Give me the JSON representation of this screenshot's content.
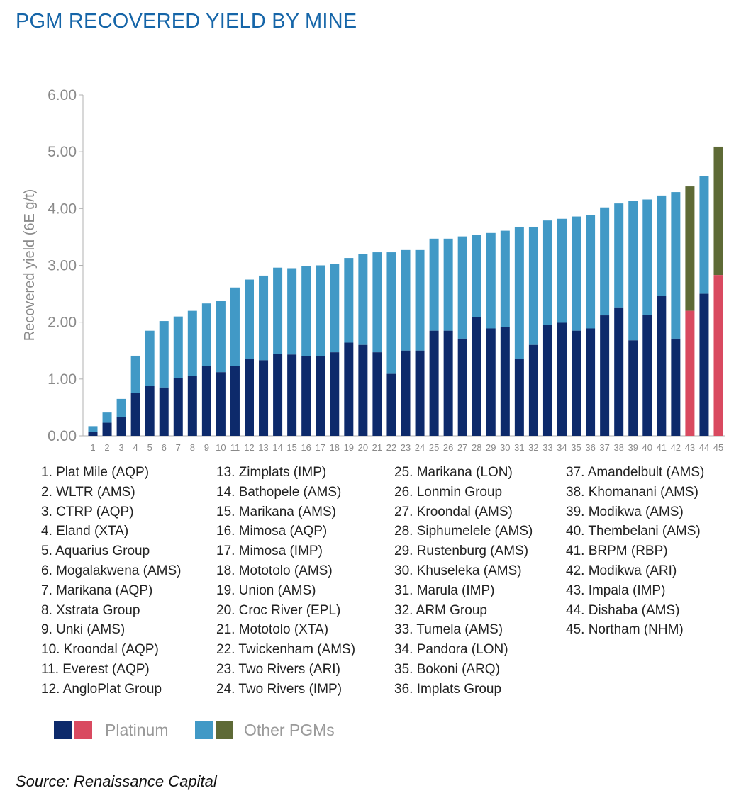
{
  "title": "PGM RECOVERED YIELD BY MINE",
  "source": "Source: Renaissance Capital",
  "legend": {
    "platinum_label": "Platinum",
    "other_label": "Other PGMs",
    "platinum_colors": [
      "#0d2a6b",
      "#d94a60"
    ],
    "other_colors": [
      "#4199c6",
      "#5e6a36"
    ]
  },
  "chart_data": {
    "type": "bar",
    "stacked": true,
    "ylabel": "Recovered yield (6E g/t)",
    "ylim": [
      0,
      6
    ],
    "yticks": [
      "0.00",
      "1.00",
      "2.00",
      "3.00",
      "4.00",
      "5.00",
      "6.00"
    ],
    "categories": [
      "1",
      "2",
      "3",
      "4",
      "5",
      "6",
      "7",
      "8",
      "9",
      "10",
      "11",
      "12",
      "13",
      "14",
      "15",
      "16",
      "17",
      "18",
      "19",
      "20",
      "21",
      "22",
      "23",
      "24",
      "25",
      "26",
      "27",
      "28",
      "29",
      "30",
      "31",
      "32",
      "33",
      "34",
      "35",
      "36",
      "37",
      "38",
      "39",
      "40",
      "41",
      "42",
      "43",
      "44",
      "45"
    ],
    "highlight_categories": [
      "43",
      "45"
    ],
    "series": [
      {
        "name": "Platinum",
        "values": [
          0.07,
          0.23,
          0.33,
          0.75,
          0.88,
          0.85,
          1.02,
          1.05,
          1.23,
          1.12,
          1.23,
          1.36,
          1.33,
          1.44,
          1.43,
          1.4,
          1.4,
          1.47,
          1.64,
          1.6,
          1.47,
          1.09,
          1.5,
          1.5,
          1.85,
          1.85,
          1.71,
          2.09,
          1.89,
          1.92,
          1.36,
          1.6,
          1.95,
          1.99,
          1.85,
          1.89,
          2.12,
          2.26,
          1.68,
          2.13,
          2.47,
          1.71,
          2.2,
          2.5,
          2.83
        ]
      },
      {
        "name": "Other PGMs",
        "values": [
          0.1,
          0.18,
          0.32,
          0.66,
          0.97,
          1.17,
          1.08,
          1.15,
          1.1,
          1.25,
          1.38,
          1.39,
          1.49,
          1.52,
          1.52,
          1.59,
          1.6,
          1.55,
          1.49,
          1.6,
          1.76,
          2.14,
          1.77,
          1.77,
          1.62,
          1.62,
          1.8,
          1.45,
          1.68,
          1.69,
          2.32,
          2.08,
          1.84,
          1.83,
          2.01,
          1.99,
          1.9,
          1.83,
          2.45,
          2.03,
          1.76,
          2.58,
          2.19,
          2.07,
          2.26
        ]
      }
    ]
  },
  "mines": [
    "1. Plat Mile (AQP)",
    "2. WLTR (AMS)",
    "3. CTRP (AQP)",
    "4. Eland (XTA)",
    "5. Aquarius Group",
    "6. Mogalakwena (AMS)",
    "7. Marikana (AQP)",
    "8. Xstrata Group",
    "9. Unki (AMS)",
    "10. Kroondal (AQP)",
    "11. Everest (AQP)",
    "12. AngloPlat Group",
    "13. Zimplats (IMP)",
    "14. Bathopele (AMS)",
    "15. Marikana (AMS)",
    "16. Mimosa (AQP)",
    "17. Mimosa (IMP)",
    "18. Mototolo (AMS)",
    "19. Union (AMS)",
    "20. Croc River (EPL)",
    "21. Mototolo (XTA)",
    "22. Twickenham (AMS)",
    "23. Two Rivers (ARI)",
    "24. Two Rivers (IMP)",
    "25. Marikana (LON)",
    "26. Lonmin Group",
    "27. Kroondal (AMS)",
    "28. Siphumelele (AMS)",
    "29. Rustenburg (AMS)",
    "30. Khuseleka (AMS)",
    "31. Marula (IMP)",
    "32. ARM Group",
    "33. Tumela (AMS)",
    "34. Pandora (LON)",
    "35. Bokoni (ARQ)",
    "36. Implats Group",
    "37. Amandelbult (AMS)",
    "38. Khomanani (AMS)",
    "39. Modikwa (AMS)",
    "40. Thembelani (AMS)",
    "41. BRPM (RBP)",
    "42. Modikwa (ARI)",
    "43. Impala (IMP)",
    "44. Dishaba (AMS)",
    "45. Northam (NHM)"
  ]
}
